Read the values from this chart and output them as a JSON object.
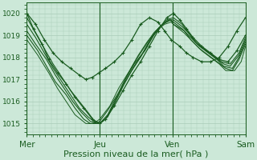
{
  "bg_color": "#cce8d8",
  "grid_color": "#aaccb8",
  "line_color": "#1a5c20",
  "xlabel": "Pression niveau de la mer( hPa )",
  "xlabel_fontsize": 8,
  "ylim": [
    1014.5,
    1020.5
  ],
  "yticks": [
    1015,
    1016,
    1017,
    1018,
    1019,
    1020
  ],
  "xtick_labels": [
    "Mer",
    "Jeu",
    "Ven",
    "Sam"
  ],
  "xtick_positions": [
    0.0,
    0.333,
    0.667,
    1.0
  ],
  "series": [
    {
      "x": [
        0.0,
        0.04,
        0.08,
        0.12,
        0.16,
        0.2,
        0.24,
        0.27,
        0.3,
        0.33,
        0.36,
        0.4,
        0.44,
        0.48,
        0.52,
        0.56,
        0.6,
        0.63,
        0.66,
        0.7,
        0.73,
        0.76,
        0.8,
        0.84,
        0.88,
        0.92,
        0.96,
        1.0
      ],
      "y": [
        1020.0,
        1019.5,
        1018.8,
        1018.2,
        1017.8,
        1017.5,
        1017.2,
        1017.0,
        1017.1,
        1017.3,
        1017.5,
        1017.8,
        1018.2,
        1018.8,
        1019.5,
        1019.8,
        1019.6,
        1019.2,
        1018.8,
        1018.5,
        1018.2,
        1018.0,
        1017.8,
        1017.8,
        1018.0,
        1018.5,
        1019.2,
        1019.8
      ],
      "marker": true,
      "lw": 0.9
    },
    {
      "x": [
        0.0,
        0.03,
        0.07,
        0.1,
        0.14,
        0.18,
        0.22,
        0.26,
        0.3,
        0.333,
        0.36,
        0.4,
        0.44,
        0.48,
        0.52,
        0.56,
        0.6,
        0.64,
        0.67,
        0.7,
        0.73,
        0.76,
        0.8,
        0.84,
        0.88,
        0.92,
        0.96,
        1.0
      ],
      "y": [
        1020.0,
        1019.3,
        1018.6,
        1017.9,
        1017.3,
        1016.8,
        1016.2,
        1015.7,
        1015.2,
        1015.0,
        1015.2,
        1015.8,
        1016.5,
        1017.2,
        1017.8,
        1018.5,
        1019.2,
        1019.8,
        1020.0,
        1019.7,
        1019.3,
        1018.9,
        1018.5,
        1018.2,
        1017.9,
        1017.8,
        1018.3,
        1019.0
      ],
      "marker": true,
      "lw": 0.9
    },
    {
      "x": [
        0.0,
        0.04,
        0.08,
        0.12,
        0.16,
        0.2,
        0.24,
        0.28,
        0.31,
        0.333,
        0.36,
        0.4,
        0.44,
        0.48,
        0.52,
        0.56,
        0.6,
        0.64,
        0.67,
        0.71,
        0.74,
        0.77,
        0.81,
        0.85,
        0.89,
        0.93,
        0.97,
        1.0
      ],
      "y": [
        1019.8,
        1019.1,
        1018.4,
        1017.7,
        1017.1,
        1016.5,
        1016.0,
        1015.5,
        1015.1,
        1015.0,
        1015.2,
        1015.9,
        1016.7,
        1017.4,
        1018.0,
        1018.7,
        1019.3,
        1019.7,
        1019.8,
        1019.5,
        1019.1,
        1018.7,
        1018.4,
        1018.1,
        1017.8,
        1017.7,
        1018.2,
        1018.9
      ],
      "marker": false,
      "lw": 0.8
    },
    {
      "x": [
        0.0,
        0.04,
        0.08,
        0.12,
        0.16,
        0.2,
        0.24,
        0.28,
        0.32,
        0.333,
        0.37,
        0.41,
        0.45,
        0.49,
        0.53,
        0.57,
        0.61,
        0.65,
        0.67,
        0.71,
        0.75,
        0.78,
        0.82,
        0.86,
        0.9,
        0.93,
        0.97,
        1.0
      ],
      "y": [
        1019.5,
        1018.9,
        1018.2,
        1017.5,
        1016.9,
        1016.3,
        1015.7,
        1015.3,
        1015.0,
        1015.0,
        1015.3,
        1016.1,
        1016.9,
        1017.6,
        1018.2,
        1018.9,
        1019.4,
        1019.7,
        1019.7,
        1019.4,
        1019.0,
        1018.6,
        1018.3,
        1018.0,
        1017.7,
        1017.6,
        1018.1,
        1018.8
      ],
      "marker": false,
      "lw": 0.8
    },
    {
      "x": [
        0.0,
        0.04,
        0.09,
        0.13,
        0.17,
        0.21,
        0.25,
        0.29,
        0.32,
        0.333,
        0.37,
        0.41,
        0.45,
        0.49,
        0.54,
        0.58,
        0.62,
        0.65,
        0.67,
        0.71,
        0.75,
        0.79,
        0.83,
        0.87,
        0.9,
        0.94,
        0.97,
        1.0
      ],
      "y": [
        1019.2,
        1018.6,
        1017.9,
        1017.2,
        1016.6,
        1016.0,
        1015.5,
        1015.1,
        1015.0,
        1015.0,
        1015.4,
        1016.2,
        1017.0,
        1017.7,
        1018.3,
        1019.0,
        1019.5,
        1019.7,
        1019.6,
        1019.3,
        1018.9,
        1018.5,
        1018.2,
        1017.9,
        1017.6,
        1017.5,
        1018.0,
        1018.7
      ],
      "marker": false,
      "lw": 0.8
    },
    {
      "x": [
        0.0,
        0.05,
        0.09,
        0.13,
        0.18,
        0.22,
        0.26,
        0.29,
        0.32,
        0.333,
        0.37,
        0.42,
        0.46,
        0.5,
        0.54,
        0.58,
        0.62,
        0.66,
        0.67,
        0.72,
        0.75,
        0.79,
        0.83,
        0.87,
        0.91,
        0.94,
        0.97,
        1.0
      ],
      "y": [
        1019.0,
        1018.3,
        1017.6,
        1016.9,
        1016.3,
        1015.7,
        1015.2,
        1015.0,
        1015.0,
        1015.1,
        1015.6,
        1016.4,
        1017.2,
        1017.9,
        1018.5,
        1019.1,
        1019.5,
        1019.7,
        1019.5,
        1019.2,
        1018.8,
        1018.4,
        1018.1,
        1017.8,
        1017.5,
        1017.4,
        1017.9,
        1018.6
      ],
      "marker": false,
      "lw": 0.8
    },
    {
      "x": [
        0.0,
        0.05,
        0.1,
        0.14,
        0.18,
        0.22,
        0.27,
        0.3,
        0.32,
        0.333,
        0.38,
        0.42,
        0.47,
        0.51,
        0.55,
        0.59,
        0.63,
        0.66,
        0.67,
        0.72,
        0.76,
        0.8,
        0.84,
        0.88,
        0.91,
        0.95,
        0.98,
        1.0
      ],
      "y": [
        1018.8,
        1018.1,
        1017.3,
        1016.6,
        1016.0,
        1015.4,
        1015.0,
        1015.0,
        1015.1,
        1015.2,
        1015.8,
        1016.6,
        1017.4,
        1018.1,
        1018.7,
        1019.2,
        1019.5,
        1019.6,
        1019.5,
        1019.1,
        1018.7,
        1018.3,
        1018.0,
        1017.7,
        1017.4,
        1017.4,
        1017.8,
        1018.5
      ],
      "marker": false,
      "lw": 0.7
    }
  ]
}
